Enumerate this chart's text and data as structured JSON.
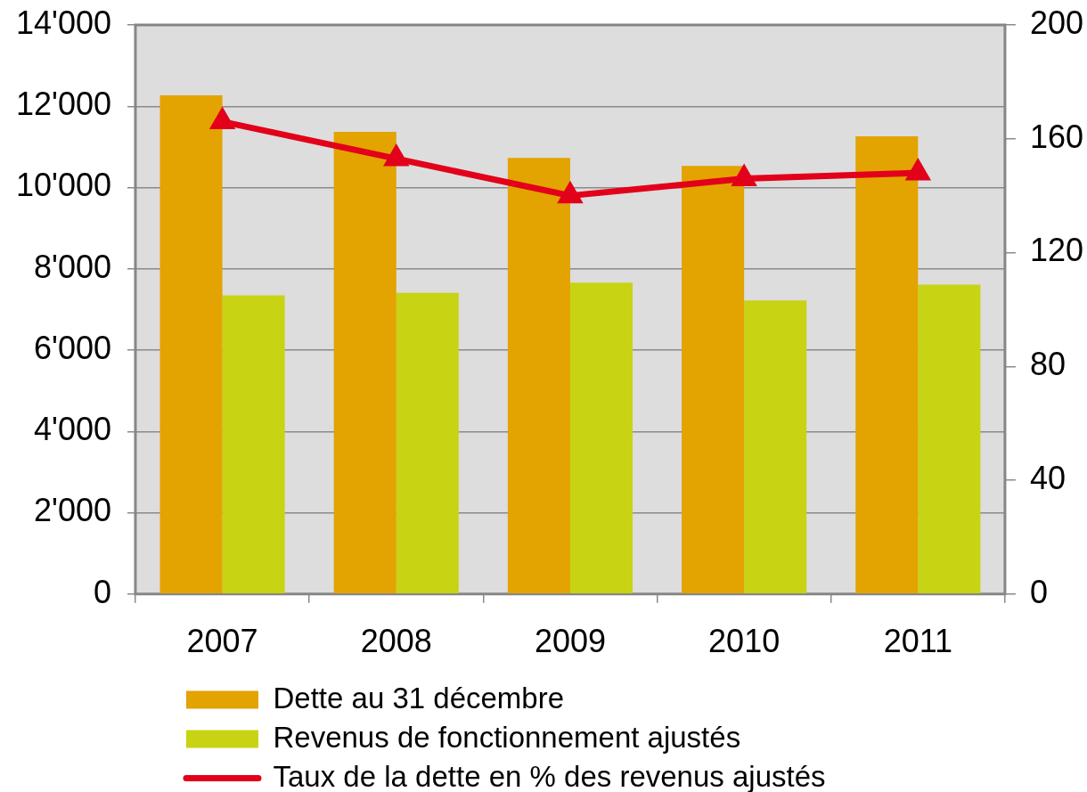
{
  "chart_data": {
    "type": "bar",
    "categories": [
      "2007",
      "2008",
      "2009",
      "2010",
      "2011"
    ],
    "series": [
      {
        "name": "Dette au 31 décembre",
        "color": "#e3a300",
        "values": [
          12270,
          11370,
          10730,
          10530,
          11260
        ]
      },
      {
        "name": "Revenus de fonctionnement ajustés",
        "color": "#c8d314",
        "values": [
          7350,
          7410,
          7660,
          7220,
          7610
        ]
      },
      {
        "name": "Taux de la dette en % des revenus ajustés",
        "type": "line",
        "axis": "y2",
        "marker": "triangle",
        "color": "#e2001a",
        "values": [
          166,
          153,
          140,
          146,
          148
        ]
      }
    ],
    "ylim": [
      0,
      14000
    ],
    "yticks": [
      0,
      {
        "value": 2000,
        "label": "2'000"
      },
      {
        "value": 4000,
        "label": "4'000"
      },
      {
        "value": 6000,
        "label": "6'000"
      },
      {
        "value": 8000,
        "label": "8'000"
      },
      {
        "value": 10000,
        "label": "10'000"
      },
      {
        "value": 12000,
        "label": "12'000"
      },
      {
        "value": 14000,
        "label": "14'000"
      }
    ],
    "y2lim": [
      0,
      200
    ],
    "y2ticks": [
      0,
      40,
      80,
      120,
      160,
      200
    ],
    "grid": "y",
    "legend": "bottom"
  }
}
